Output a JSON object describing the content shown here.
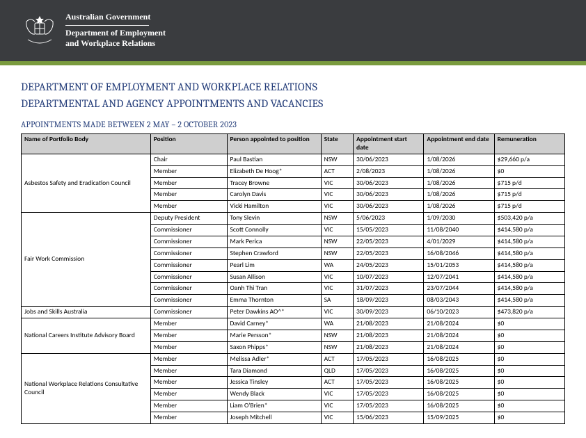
{
  "header": {
    "gov": "Australian Government",
    "dept1": "Department of Employment",
    "dept2": "and Workplace Relations"
  },
  "titles": {
    "h1a": "DEPARTMENT OF EMPLOYMENT AND WORKPLACE RELATIONS",
    "h1b": "DEPARTMENTAL AND AGENCY APPOINTMENTS AND VACANCIES",
    "h2": "APPOINTMENTS MADE BETWEEN 2 MAY – 2 OCTOBER 2023"
  },
  "columns": {
    "body": "Name of Portfolio Body",
    "position": "Position",
    "person": "Person appointed to position",
    "state": "State",
    "start": "Appointment start date",
    "end": "Appointment end date",
    "rem": "Remuneration"
  },
  "groups": [
    {
      "body": "Asbestos Safety and Eradication Council",
      "rows": [
        {
          "position": "Chair",
          "person": "Paul Bastian",
          "state": "NSW",
          "start": "30/06/2023",
          "end": "1/08/2026",
          "rem": "$29,660 p/a"
        },
        {
          "position": "Member",
          "person": "Elizabeth De Hoog*",
          "state": "ACT",
          "start": "2/08/2023",
          "end": "1/08/2026",
          "rem": "$0"
        },
        {
          "position": "Member",
          "person": "Tracey Browne",
          "state": "VIC",
          "start": "30/06/2023",
          "end": "1/08/2026",
          "rem": "$715 p/d"
        },
        {
          "position": "Member",
          "person": "Carolyn Davis",
          "state": "VIC",
          "start": "30/06/2023",
          "end": "1/08/2026",
          "rem": "$715 p/d"
        },
        {
          "position": "Member",
          "person": "Vicki Hamilton",
          "state": "VIC",
          "start": "30/06/2023",
          "end": "1/08/2026",
          "rem": "$715 p/d"
        }
      ]
    },
    {
      "body": "Fair Work Commission",
      "rows": [
        {
          "position": "Deputy President",
          "person": "Tony Slevin",
          "state": "NSW",
          "start": "5/06/2023",
          "end": "1/09/2030",
          "rem": "$503,420 p/a"
        },
        {
          "position": "Commissioner",
          "person": "Scott Connolly",
          "state": "VIC",
          "start": "15/05/2023",
          "end": "11/08/2040",
          "rem": "$414,580 p/a"
        },
        {
          "position": "Commissioner",
          "person": "Mark Perica",
          "state": "NSW",
          "start": "22/05/2023",
          "end": "4/01/2029",
          "rem": "$414,580 p/a"
        },
        {
          "position": "Commissioner",
          "person": "Stephen Crawford",
          "state": "NSW",
          "start": "22/05/2023",
          "end": "16/08/2046",
          "rem": "$414,580 p/a"
        },
        {
          "position": "Commissioner",
          "person": "Pearl Lim",
          "state": "WA",
          "start": "24/05/2023",
          "end": "15/01/2053",
          "rem": "$414,580 p/a"
        },
        {
          "position": "Commissioner",
          "person": "Susan Allison",
          "state": "VIC",
          "start": "10/07/2023",
          "end": "12/07/2041",
          "rem": "$414,580 p/a"
        },
        {
          "position": "Commissioner",
          "person": "Oanh Thi Tran",
          "state": "VIC",
          "start": "31/07/2023",
          "end": "23/07/2044",
          "rem": "$414,580 p/a"
        },
        {
          "position": "Commissioner",
          "person": "Emma Thornton",
          "state": "SA",
          "start": "18/09/2023",
          "end": "08/03/2043",
          "rem": "$414,580 p/a"
        }
      ]
    },
    {
      "body": "Jobs and Skills Australia",
      "rows": [
        {
          "position": "Commissioner",
          "person": "Peter Dawkins AO^*",
          "state": "VIC",
          "start": "30/09/2023",
          "end": "06/10/2023",
          "rem": "$473,820 p/a"
        }
      ]
    },
    {
      "body": "National Careers Institute Advisory Board",
      "rows": [
        {
          "position": "Member",
          "person": "David Carney*",
          "state": "WA",
          "start": "21/08/2023",
          "end": "21/08/2024",
          "rem": "$0"
        },
        {
          "position": "Member",
          "person": "Marie Persson*",
          "state": "NSW",
          "start": "21/08/2023",
          "end": "21/08/2024",
          "rem": "$0"
        },
        {
          "position": "Member",
          "person": "Saxon Phipps*",
          "state": "NSW",
          "start": "21/08/2023",
          "end": "21/08/2024",
          "rem": "$0"
        }
      ]
    },
    {
      "body": "National Workplace Relations Consultative Council",
      "rows": [
        {
          "position": "Member",
          "person": "Melissa Adler*",
          "state": "ACT",
          "start": "17/05/2023",
          "end": "16/08/2025",
          "rem": "$0"
        },
        {
          "position": "Member",
          "person": "Tara Diamond",
          "state": "QLD",
          "start": "17/05/2023",
          "end": "16/08/2025",
          "rem": "$0"
        },
        {
          "position": "Member",
          "person": "Jessica Tinsley",
          "state": "ACT",
          "start": "17/05/2023",
          "end": "16/08/2025",
          "rem": "$0"
        },
        {
          "position": "Member",
          "person": "Wendy Black",
          "state": "VIC",
          "start": "17/05/2023",
          "end": "16/08/2025",
          "rem": "$0"
        },
        {
          "position": "Member",
          "person": "Liam O'Brien*",
          "state": "VIC",
          "start": "17/05/2023",
          "end": "16/08/2025",
          "rem": "$0"
        },
        {
          "position": "Member",
          "person": "Joseph Mitchell",
          "state": "VIC",
          "start": "15/06/2023",
          "end": "15/09/2025",
          "rem": "$0"
        }
      ]
    }
  ]
}
